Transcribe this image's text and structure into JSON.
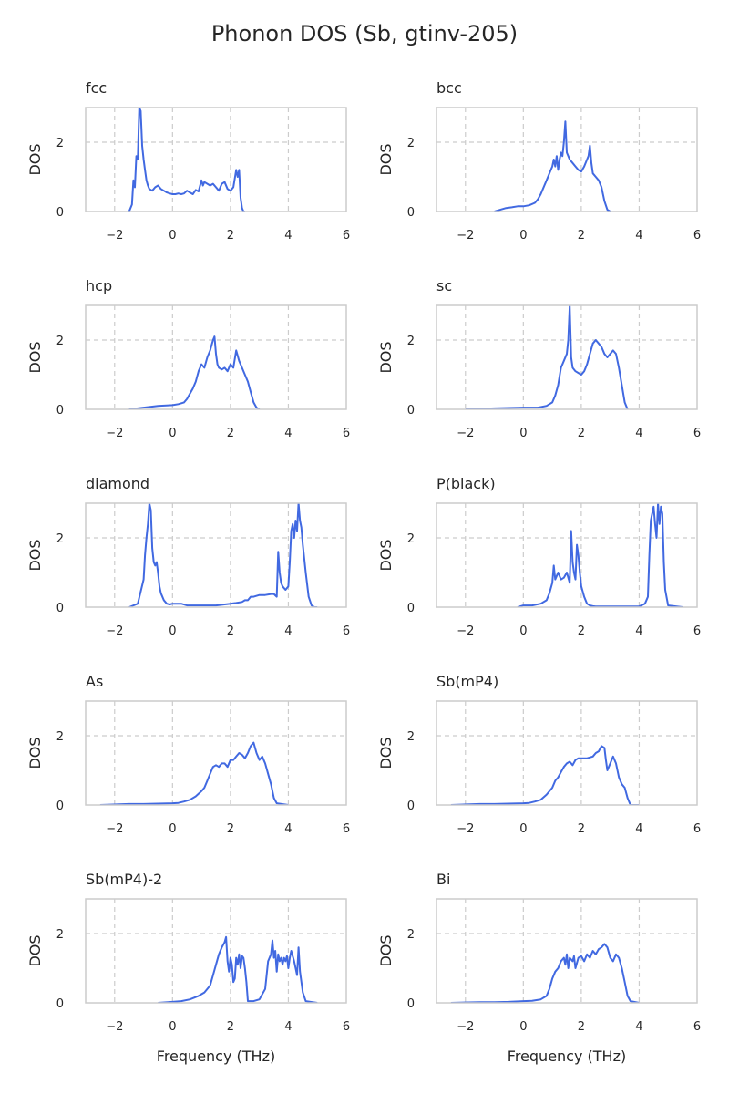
{
  "figure": {
    "title": "Phonon DOS (Sb, gtinv-205)"
  },
  "chart_data": {
    "type": "line",
    "layout": "5x2 grid of subplots",
    "shared": {
      "xlabel": "Frequency (THz)",
      "ylabel": "DOS",
      "xlim": [
        -3,
        6
      ],
      "ylim": [
        0,
        3
      ],
      "xticks": [
        -2,
        0,
        2,
        4,
        6
      ],
      "yticks": [
        0,
        2
      ],
      "grid": "dashed",
      "line_color": "#4169e1"
    },
    "panels": [
      {
        "title": "fcc",
        "x": [
          -1.5,
          -1.4,
          -1.35,
          -1.3,
          -1.25,
          -1.2,
          -1.15,
          -1.1,
          -1.05,
          -1.0,
          -0.95,
          -0.9,
          -0.85,
          -0.8,
          -0.7,
          -0.6,
          -0.5,
          -0.4,
          -0.3,
          -0.2,
          -0.1,
          0.0,
          0.1,
          0.2,
          0.3,
          0.4,
          0.5,
          0.6,
          0.7,
          0.8,
          0.9,
          1.0,
          1.05,
          1.1,
          1.2,
          1.3,
          1.4,
          1.5,
          1.6,
          1.7,
          1.8,
          1.9,
          2.0,
          2.1,
          2.2,
          2.25,
          2.3,
          2.35,
          2.4,
          2.45,
          2.5
        ],
        "y": [
          0,
          0.2,
          0.9,
          0.7,
          1.6,
          1.5,
          3.0,
          2.9,
          1.9,
          1.5,
          1.2,
          0.9,
          0.75,
          0.65,
          0.6,
          0.7,
          0.75,
          0.65,
          0.6,
          0.55,
          0.52,
          0.5,
          0.5,
          0.52,
          0.5,
          0.52,
          0.6,
          0.55,
          0.5,
          0.62,
          0.58,
          0.9,
          0.75,
          0.85,
          0.8,
          0.75,
          0.8,
          0.7,
          0.6,
          0.8,
          0.85,
          0.65,
          0.6,
          0.7,
          1.2,
          1.0,
          1.2,
          0.4,
          0.1,
          0,
          0
        ]
      },
      {
        "title": "bcc",
        "x": [
          -1.0,
          -0.8,
          -0.6,
          -0.4,
          -0.2,
          0.0,
          0.2,
          0.4,
          0.5,
          0.6,
          0.7,
          0.8,
          0.9,
          1.0,
          1.05,
          1.1,
          1.15,
          1.2,
          1.25,
          1.3,
          1.35,
          1.4,
          1.45,
          1.5,
          1.6,
          1.7,
          1.8,
          1.9,
          2.0,
          2.1,
          2.2,
          2.25,
          2.3,
          2.35,
          2.4,
          2.5,
          2.6,
          2.7,
          2.8,
          2.9,
          3.0
        ],
        "y": [
          0,
          0.05,
          0.1,
          0.12,
          0.15,
          0.15,
          0.18,
          0.25,
          0.35,
          0.5,
          0.7,
          0.9,
          1.1,
          1.3,
          1.5,
          1.3,
          1.6,
          1.2,
          1.5,
          1.7,
          1.6,
          2.0,
          2.6,
          1.7,
          1.5,
          1.4,
          1.3,
          1.2,
          1.15,
          1.3,
          1.5,
          1.6,
          1.9,
          1.4,
          1.1,
          1.0,
          0.9,
          0.7,
          0.3,
          0.05,
          0
        ]
      },
      {
        "title": "hcp",
        "x": [
          -1.5,
          -1.0,
          -0.5,
          0.0,
          0.2,
          0.4,
          0.5,
          0.6,
          0.7,
          0.8,
          0.9,
          1.0,
          1.1,
          1.2,
          1.3,
          1.4,
          1.45,
          1.5,
          1.55,
          1.6,
          1.7,
          1.8,
          1.9,
          2.0,
          2.1,
          2.2,
          2.3,
          2.4,
          2.5,
          2.6,
          2.7,
          2.8,
          2.9,
          3.0
        ],
        "y": [
          0,
          0.05,
          0.1,
          0.12,
          0.15,
          0.2,
          0.3,
          0.45,
          0.6,
          0.8,
          1.1,
          1.3,
          1.2,
          1.5,
          1.7,
          2.0,
          2.1,
          1.6,
          1.3,
          1.2,
          1.15,
          1.2,
          1.1,
          1.3,
          1.2,
          1.7,
          1.4,
          1.2,
          1.0,
          0.8,
          0.5,
          0.2,
          0.05,
          0
        ]
      },
      {
        "title": "sc",
        "x": [
          -2.0,
          -1.0,
          0.0,
          0.5,
          0.8,
          1.0,
          1.1,
          1.2,
          1.3,
          1.4,
          1.5,
          1.55,
          1.6,
          1.65,
          1.7,
          1.8,
          1.9,
          2.0,
          2.1,
          2.2,
          2.3,
          2.4,
          2.5,
          2.6,
          2.7,
          2.8,
          2.9,
          3.0,
          3.1,
          3.2,
          3.3,
          3.4,
          3.5,
          3.6
        ],
        "y": [
          0,
          0.03,
          0.05,
          0.05,
          0.1,
          0.2,
          0.4,
          0.7,
          1.2,
          1.4,
          1.6,
          2.0,
          3.0,
          1.5,
          1.2,
          1.1,
          1.05,
          1.0,
          1.1,
          1.3,
          1.6,
          1.9,
          2.0,
          1.9,
          1.8,
          1.6,
          1.5,
          1.6,
          1.7,
          1.6,
          1.2,
          0.7,
          0.2,
          0
        ]
      },
      {
        "title": "diamond",
        "x": [
          -1.5,
          -1.2,
          -1.0,
          -0.95,
          -0.9,
          -0.85,
          -0.8,
          -0.75,
          -0.7,
          -0.65,
          -0.6,
          -0.55,
          -0.5,
          -0.45,
          -0.4,
          -0.3,
          -0.2,
          -0.1,
          0.0,
          0.3,
          0.5,
          1.0,
          1.5,
          2.0,
          2.2,
          2.4,
          2.5,
          2.6,
          2.7,
          2.8,
          3.0,
          3.2,
          3.4,
          3.5,
          3.6,
          3.65,
          3.7,
          3.75,
          3.8,
          3.9,
          4.0,
          4.05,
          4.1,
          4.15,
          4.2,
          4.25,
          4.3,
          4.35,
          4.4,
          4.45,
          4.5,
          4.6,
          4.7,
          4.8,
          4.9,
          5.0
        ],
        "y": [
          0,
          0.1,
          0.8,
          1.5,
          2.0,
          2.4,
          3.0,
          2.8,
          1.7,
          1.3,
          1.2,
          1.3,
          1.0,
          0.6,
          0.4,
          0.2,
          0.1,
          0.08,
          0.1,
          0.1,
          0.05,
          0.05,
          0.05,
          0.1,
          0.12,
          0.15,
          0.2,
          0.2,
          0.3,
          0.3,
          0.35,
          0.35,
          0.38,
          0.38,
          0.3,
          1.6,
          1.0,
          0.7,
          0.6,
          0.5,
          0.6,
          1.3,
          2.2,
          2.4,
          2.0,
          2.5,
          2.2,
          3.0,
          2.5,
          2.3,
          1.8,
          1.0,
          0.3,
          0.05,
          0,
          0
        ]
      },
      {
        "title": "P(black)",
        "x": [
          -0.2,
          0.0,
          0.3,
          0.6,
          0.8,
          0.9,
          1.0,
          1.05,
          1.1,
          1.15,
          1.2,
          1.3,
          1.4,
          1.5,
          1.6,
          1.65,
          1.7,
          1.75,
          1.8,
          1.85,
          1.9,
          1.95,
          2.0,
          2.1,
          2.2,
          2.3,
          2.4,
          2.5,
          3.0,
          3.5,
          4.0,
          4.2,
          4.3,
          4.35,
          4.4,
          4.45,
          4.5,
          4.55,
          4.6,
          4.65,
          4.7,
          4.75,
          4.8,
          4.85,
          4.9,
          5.0,
          5.5
        ],
        "y": [
          0,
          0.05,
          0.05,
          0.1,
          0.2,
          0.4,
          0.7,
          1.2,
          0.8,
          0.9,
          1.0,
          0.8,
          0.85,
          1.0,
          0.7,
          2.2,
          1.3,
          1.0,
          0.8,
          1.8,
          1.5,
          1.0,
          0.6,
          0.3,
          0.1,
          0.05,
          0.03,
          0.02,
          0.02,
          0.02,
          0.02,
          0.1,
          0.3,
          1.5,
          2.5,
          2.7,
          2.9,
          2.4,
          2.0,
          3.0,
          2.4,
          2.9,
          2.7,
          1.3,
          0.5,
          0.05,
          0
        ]
      },
      {
        "title": "As",
        "x": [
          -2.5,
          -1.5,
          -1.0,
          -0.5,
          0.0,
          0.2,
          0.4,
          0.6,
          0.8,
          1.0,
          1.1,
          1.2,
          1.3,
          1.4,
          1.5,
          1.6,
          1.7,
          1.8,
          1.9,
          2.0,
          2.1,
          2.2,
          2.3,
          2.4,
          2.5,
          2.6,
          2.7,
          2.8,
          2.9,
          3.0,
          3.1,
          3.2,
          3.3,
          3.4,
          3.5,
          3.6,
          4.0
        ],
        "y": [
          0,
          0.03,
          0.03,
          0.04,
          0.05,
          0.06,
          0.1,
          0.15,
          0.25,
          0.4,
          0.5,
          0.7,
          0.9,
          1.1,
          1.15,
          1.1,
          1.2,
          1.2,
          1.1,
          1.3,
          1.3,
          1.4,
          1.5,
          1.45,
          1.35,
          1.5,
          1.7,
          1.8,
          1.5,
          1.3,
          1.4,
          1.2,
          0.9,
          0.6,
          0.2,
          0.05,
          0
        ]
      },
      {
        "title": "Sb(mP4)",
        "x": [
          -2.5,
          -1.5,
          -1.0,
          -0.5,
          0.0,
          0.2,
          0.4,
          0.6,
          0.8,
          1.0,
          1.1,
          1.2,
          1.3,
          1.4,
          1.5,
          1.6,
          1.7,
          1.8,
          1.9,
          2.0,
          2.2,
          2.4,
          2.5,
          2.6,
          2.7,
          2.8,
          2.85,
          2.9,
          3.0,
          3.1,
          3.2,
          3.3,
          3.4,
          3.5,
          3.6,
          3.7,
          4.0
        ],
        "y": [
          0,
          0.03,
          0.03,
          0.04,
          0.05,
          0.06,
          0.1,
          0.15,
          0.3,
          0.5,
          0.7,
          0.8,
          0.95,
          1.1,
          1.2,
          1.25,
          1.15,
          1.3,
          1.35,
          1.35,
          1.35,
          1.4,
          1.5,
          1.55,
          1.7,
          1.65,
          1.3,
          1.0,
          1.2,
          1.4,
          1.2,
          0.8,
          0.6,
          0.5,
          0.2,
          0,
          0
        ]
      },
      {
        "title": "Sb(mP4)-2",
        "x": [
          -0.5,
          0.0,
          0.3,
          0.6,
          0.9,
          1.1,
          1.3,
          1.4,
          1.5,
          1.6,
          1.7,
          1.8,
          1.85,
          1.9,
          1.95,
          2.0,
          2.05,
          2.1,
          2.15,
          2.2,
          2.25,
          2.3,
          2.35,
          2.4,
          2.45,
          2.5,
          2.55,
          2.6,
          2.7,
          2.8,
          3.0,
          3.2,
          3.3,
          3.4,
          3.45,
          3.5,
          3.55,
          3.6,
          3.65,
          3.7,
          3.75,
          3.8,
          3.85,
          3.9,
          3.95,
          4.0,
          4.05,
          4.1,
          4.2,
          4.3,
          4.35,
          4.4,
          4.5,
          4.6,
          5.0
        ],
        "y": [
          0,
          0.03,
          0.05,
          0.1,
          0.2,
          0.3,
          0.5,
          0.8,
          1.1,
          1.4,
          1.6,
          1.75,
          1.9,
          1.2,
          0.9,
          1.3,
          1.1,
          0.6,
          0.7,
          1.3,
          1.1,
          1.4,
          1.0,
          1.35,
          1.3,
          1.0,
          0.6,
          0.05,
          0.05,
          0.05,
          0.1,
          0.4,
          1.2,
          1.4,
          1.8,
          1.3,
          1.5,
          0.9,
          1.4,
          1.2,
          1.3,
          1.1,
          1.3,
          1.2,
          1.35,
          1.0,
          1.3,
          1.5,
          1.2,
          0.8,
          1.6,
          0.9,
          0.3,
          0.05,
          0
        ]
      },
      {
        "title": "Bi",
        "x": [
          -2.5,
          -1.5,
          -1.0,
          -0.5,
          0.0,
          0.3,
          0.6,
          0.8,
          0.9,
          1.0,
          1.1,
          1.2,
          1.3,
          1.4,
          1.45,
          1.5,
          1.55,
          1.6,
          1.7,
          1.75,
          1.8,
          1.9,
          2.0,
          2.1,
          2.2,
          2.3,
          2.4,
          2.5,
          2.6,
          2.7,
          2.8,
          2.9,
          3.0,
          3.1,
          3.2,
          3.3,
          3.4,
          3.5,
          3.6,
          3.7,
          4.0
        ],
        "y": [
          0,
          0.02,
          0.02,
          0.03,
          0.05,
          0.06,
          0.1,
          0.2,
          0.4,
          0.7,
          0.9,
          1.0,
          1.2,
          1.3,
          1.1,
          1.4,
          1.0,
          1.3,
          1.2,
          1.35,
          1.0,
          1.3,
          1.35,
          1.2,
          1.4,
          1.3,
          1.5,
          1.4,
          1.55,
          1.6,
          1.7,
          1.6,
          1.3,
          1.2,
          1.4,
          1.3,
          1.0,
          0.6,
          0.2,
          0.05,
          0
        ]
      }
    ]
  }
}
